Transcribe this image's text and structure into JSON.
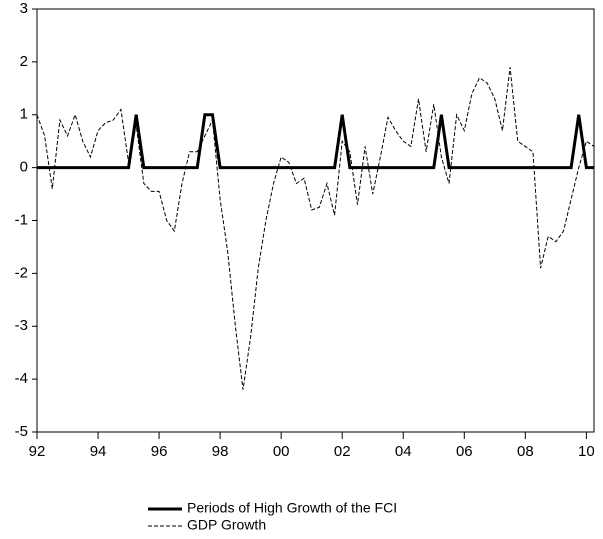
{
  "chart_data": {
    "type": "line",
    "x": [
      1992,
      1992.25,
      1992.5,
      1992.75,
      1993,
      1993.25,
      1993.5,
      1993.75,
      1994,
      1994.25,
      1994.5,
      1994.75,
      1995,
      1995.25,
      1995.5,
      1995.75,
      1996,
      1996.25,
      1996.5,
      1996.75,
      1997,
      1997.25,
      1997.5,
      1997.75,
      1998,
      1998.25,
      1998.5,
      1998.75,
      1999,
      1999.25,
      1999.5,
      1999.75,
      2000,
      2000.25,
      2000.5,
      2000.75,
      2001,
      2001.25,
      2001.5,
      2001.75,
      2002,
      2002.25,
      2002.5,
      2002.75,
      2003,
      2003.25,
      2003.5,
      2003.75,
      2004,
      2004.25,
      2004.5,
      2004.75,
      2005,
      2005.25,
      2005.5,
      2005.75,
      2006,
      2006.25,
      2006.5,
      2006.75,
      2007,
      2007.25,
      2007.5,
      2007.75,
      2008,
      2008.25,
      2008.5,
      2008.75,
      2009,
      2009.25,
      2009.5,
      2009.75,
      2010,
      2010.25
    ],
    "series": [
      {
        "name": "Periods of High Growth of the FCI",
        "color": "#000000",
        "style": "solid",
        "values": [
          0,
          0,
          0,
          0,
          0,
          0,
          0,
          0,
          0,
          0,
          0,
          0,
          0,
          1,
          0,
          0,
          0,
          0,
          0,
          0,
          0,
          0,
          1,
          1,
          0,
          0,
          0,
          0,
          0,
          0,
          0,
          0,
          0,
          0,
          0,
          0,
          0,
          0,
          0,
          0,
          1,
          0,
          0,
          0,
          0,
          0,
          0,
          0,
          0,
          0,
          0,
          0,
          0,
          1,
          0,
          0,
          0,
          0,
          0,
          0,
          0,
          0,
          0,
          0,
          0,
          0,
          0,
          0,
          0,
          0,
          0,
          1,
          0,
          0
        ]
      },
      {
        "name": "GDP Growth",
        "color": "#000000",
        "style": "dashed",
        "values": [
          1.0,
          0.6,
          -0.4,
          0.9,
          0.6,
          1.0,
          0.5,
          0.2,
          0.7,
          0.85,
          0.9,
          1.1,
          0.1,
          0.8,
          -0.3,
          -0.45,
          -0.45,
          -1.0,
          -1.2,
          -0.3,
          0.3,
          0.3,
          0.6,
          0.9,
          -0.6,
          -1.6,
          -3.0,
          -4.2,
          -3.2,
          -1.9,
          -1.0,
          -0.3,
          0.2,
          0.1,
          -0.3,
          -0.2,
          -0.8,
          -0.75,
          -0.3,
          -0.9,
          0.5,
          0.3,
          -0.7,
          0.4,
          -0.5,
          0.2,
          0.95,
          0.7,
          0.5,
          0.4,
          1.3,
          0.3,
          1.2,
          0.2,
          -0.3,
          1.0,
          0.7,
          1.4,
          1.7,
          1.6,
          1.3,
          0.7,
          1.9,
          0.5,
          0.4,
          0.3,
          -1.9,
          -1.3,
          -1.4,
          -1.2,
          -0.6,
          0.0,
          0.5,
          0.4
        ]
      }
    ],
    "xlim": [
      1992,
      2010.25
    ],
    "xticks": [
      {
        "value": 1992,
        "label": "92"
      },
      {
        "value": 1994,
        "label": "94"
      },
      {
        "value": 1996,
        "label": "96"
      },
      {
        "value": 1998,
        "label": "98"
      },
      {
        "value": 2000,
        "label": "00"
      },
      {
        "value": 2002,
        "label": "02"
      },
      {
        "value": 2004,
        "label": "04"
      },
      {
        "value": 2006,
        "label": "06"
      },
      {
        "value": 2008,
        "label": "08"
      },
      {
        "value": 2010,
        "label": "10"
      }
    ],
    "ylim": [
      -5,
      3
    ],
    "yticks": [
      3,
      2,
      1,
      0,
      -1,
      -2,
      -3,
      -4,
      -5
    ]
  }
}
